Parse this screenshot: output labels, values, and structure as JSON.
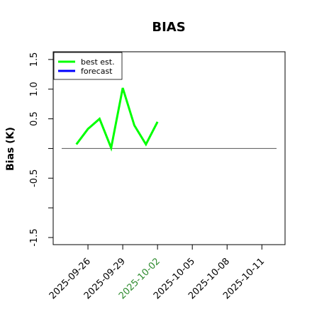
{
  "chart_data": {
    "type": "line",
    "title": "BIAS",
    "y_label": "Bias (K)",
    "x": [
      "2025-09-25",
      "2025-09-26",
      "2025-09-27",
      "2025-09-28",
      "2025-09-29",
      "2025-09-30",
      "2025-10-01",
      "2025-10-02"
    ],
    "series": [
      {
        "name": "best est.",
        "color": "#00ff00",
        "values": [
          0.07,
          0.33,
          0.5,
          0.01,
          1.02,
          0.39,
          0.07,
          0.45
        ]
      },
      {
        "name": "forecast",
        "color": "#0000ff",
        "values": [
          null,
          null,
          null,
          null,
          null,
          null,
          null,
          null
        ]
      }
    ],
    "xlim": [
      "2025-09-23",
      "2025-10-13"
    ],
    "xticks": [
      "2025-09-26",
      "2025-09-29",
      "2025-10-02",
      "2025-10-05",
      "2025-10-08",
      "2025-10-11"
    ],
    "highlight_date": "2025-10-02",
    "highlight_color": "#2e8b2e",
    "ylim": [
      -1.62,
      1.63
    ],
    "yticks": [
      {
        "value": -1.5,
        "label": "-1.5"
      },
      {
        "value": -1,
        "label": null
      },
      {
        "value": -0.5,
        "label": "-0.5"
      },
      {
        "value": 0,
        "label": null
      },
      {
        "value": 0.5,
        "label": "0.5"
      },
      {
        "value": 1,
        "label": "1.0"
      },
      1.5
    ],
    "hline": 0,
    "legend": "upper left"
  }
}
